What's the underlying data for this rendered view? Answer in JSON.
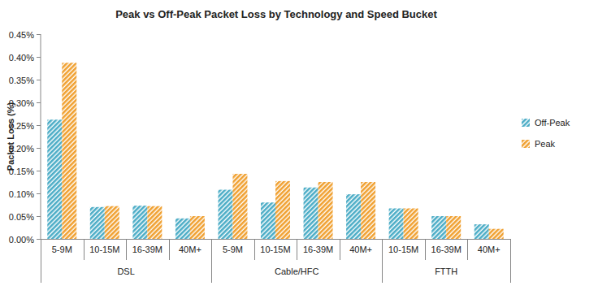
{
  "chart_data": {
    "type": "bar",
    "title": "Peak vs Off-Peak Packet Loss by Technology and Speed Bucket",
    "y_label": "Packet Loss (%)",
    "categories": [
      "5-9M",
      "10-15M",
      "16-39M",
      "40M+",
      "5-9M",
      "10-15M",
      "16-39M",
      "40M+",
      "10-15M",
      "16-39M",
      "40M+"
    ],
    "category_groups": [
      "DSL",
      "DSL",
      "DSL",
      "DSL",
      "Cable/HFC",
      "Cable/HFC",
      "Cable/HFC",
      "Cable/HFC",
      "FTTH",
      "FTTH",
      "FTTH"
    ],
    "series": [
      {
        "name": "Off-Peak",
        "color": "#4bacc6",
        "values": [
          0.262,
          0.07,
          0.073,
          0.045,
          0.108,
          0.08,
          0.113,
          0.098,
          0.067,
          0.05,
          0.032
        ]
      },
      {
        "name": "Peak",
        "color": "#f0a030",
        "values": [
          0.387,
          0.072,
          0.072,
          0.05,
          0.143,
          0.127,
          0.125,
          0.125,
          0.067,
          0.05,
          0.022
        ]
      }
    ],
    "ylim": [
      0,
      0.45
    ],
    "yticks": [
      {
        "value": 0,
        "label": "0.00%"
      },
      {
        "value": 0.05,
        "label": "0.05%"
      },
      {
        "value": 0.1,
        "label": "0.10%"
      },
      {
        "value": 0.15,
        "label": "0.15%"
      },
      {
        "value": 0.2,
        "label": "0.20%"
      },
      {
        "value": 0.25,
        "label": "0.25%"
      },
      {
        "value": 0.3,
        "label": "0.30%"
      },
      {
        "value": 0.35,
        "label": "0.35%"
      },
      {
        "value": 0.4,
        "label": "0.40%"
      },
      {
        "value": 0.45,
        "label": "0.45%"
      }
    ],
    "grid": false,
    "legend": "right"
  }
}
